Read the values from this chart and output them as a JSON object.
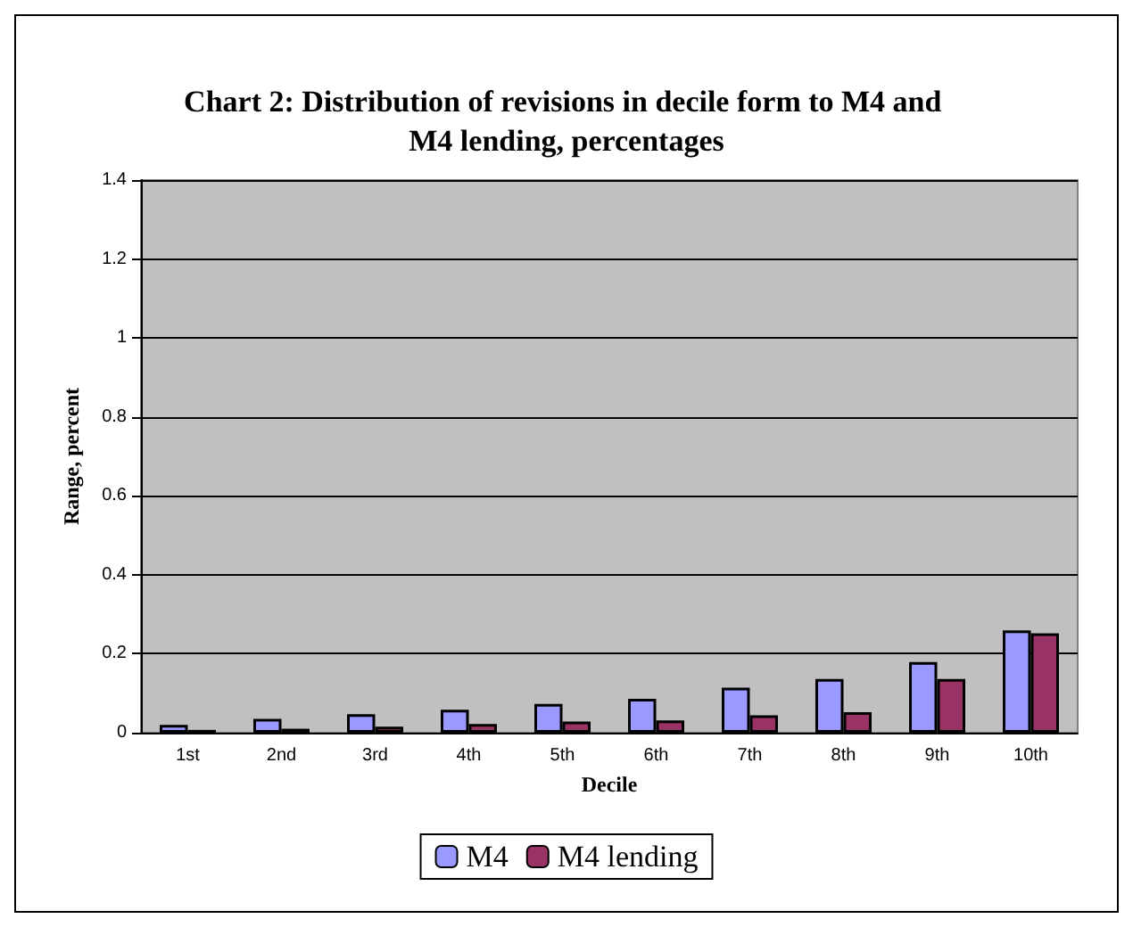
{
  "chart_data": {
    "type": "bar",
    "title": "Chart 2: Distribution of revisions in decile form to M4 and M4 lending, percentages",
    "xlabel": "Decile",
    "ylabel": "Range, percent",
    "categories": [
      "1st",
      "2nd",
      "3rd",
      "4th",
      "5th",
      "6th",
      "7th",
      "8th",
      "9th",
      "10th"
    ],
    "series": [
      {
        "name": "M4",
        "color": "#9999ff",
        "values": [
          0.02,
          0.035,
          0.047,
          0.058,
          0.073,
          0.086,
          0.114,
          0.136,
          0.179,
          0.259
        ]
      },
      {
        "name": "M4 lending",
        "color": "#993366",
        "values": [
          0.007,
          0.01,
          0.015,
          0.022,
          0.028,
          0.031,
          0.044,
          0.052,
          0.136,
          0.252
        ]
      }
    ],
    "ylim": [
      0,
      1.4
    ],
    "yticks": [
      0,
      0.2,
      0.4,
      0.6,
      0.8,
      1,
      1.2,
      1.4
    ],
    "grid": "y",
    "legend": "bottom"
  }
}
